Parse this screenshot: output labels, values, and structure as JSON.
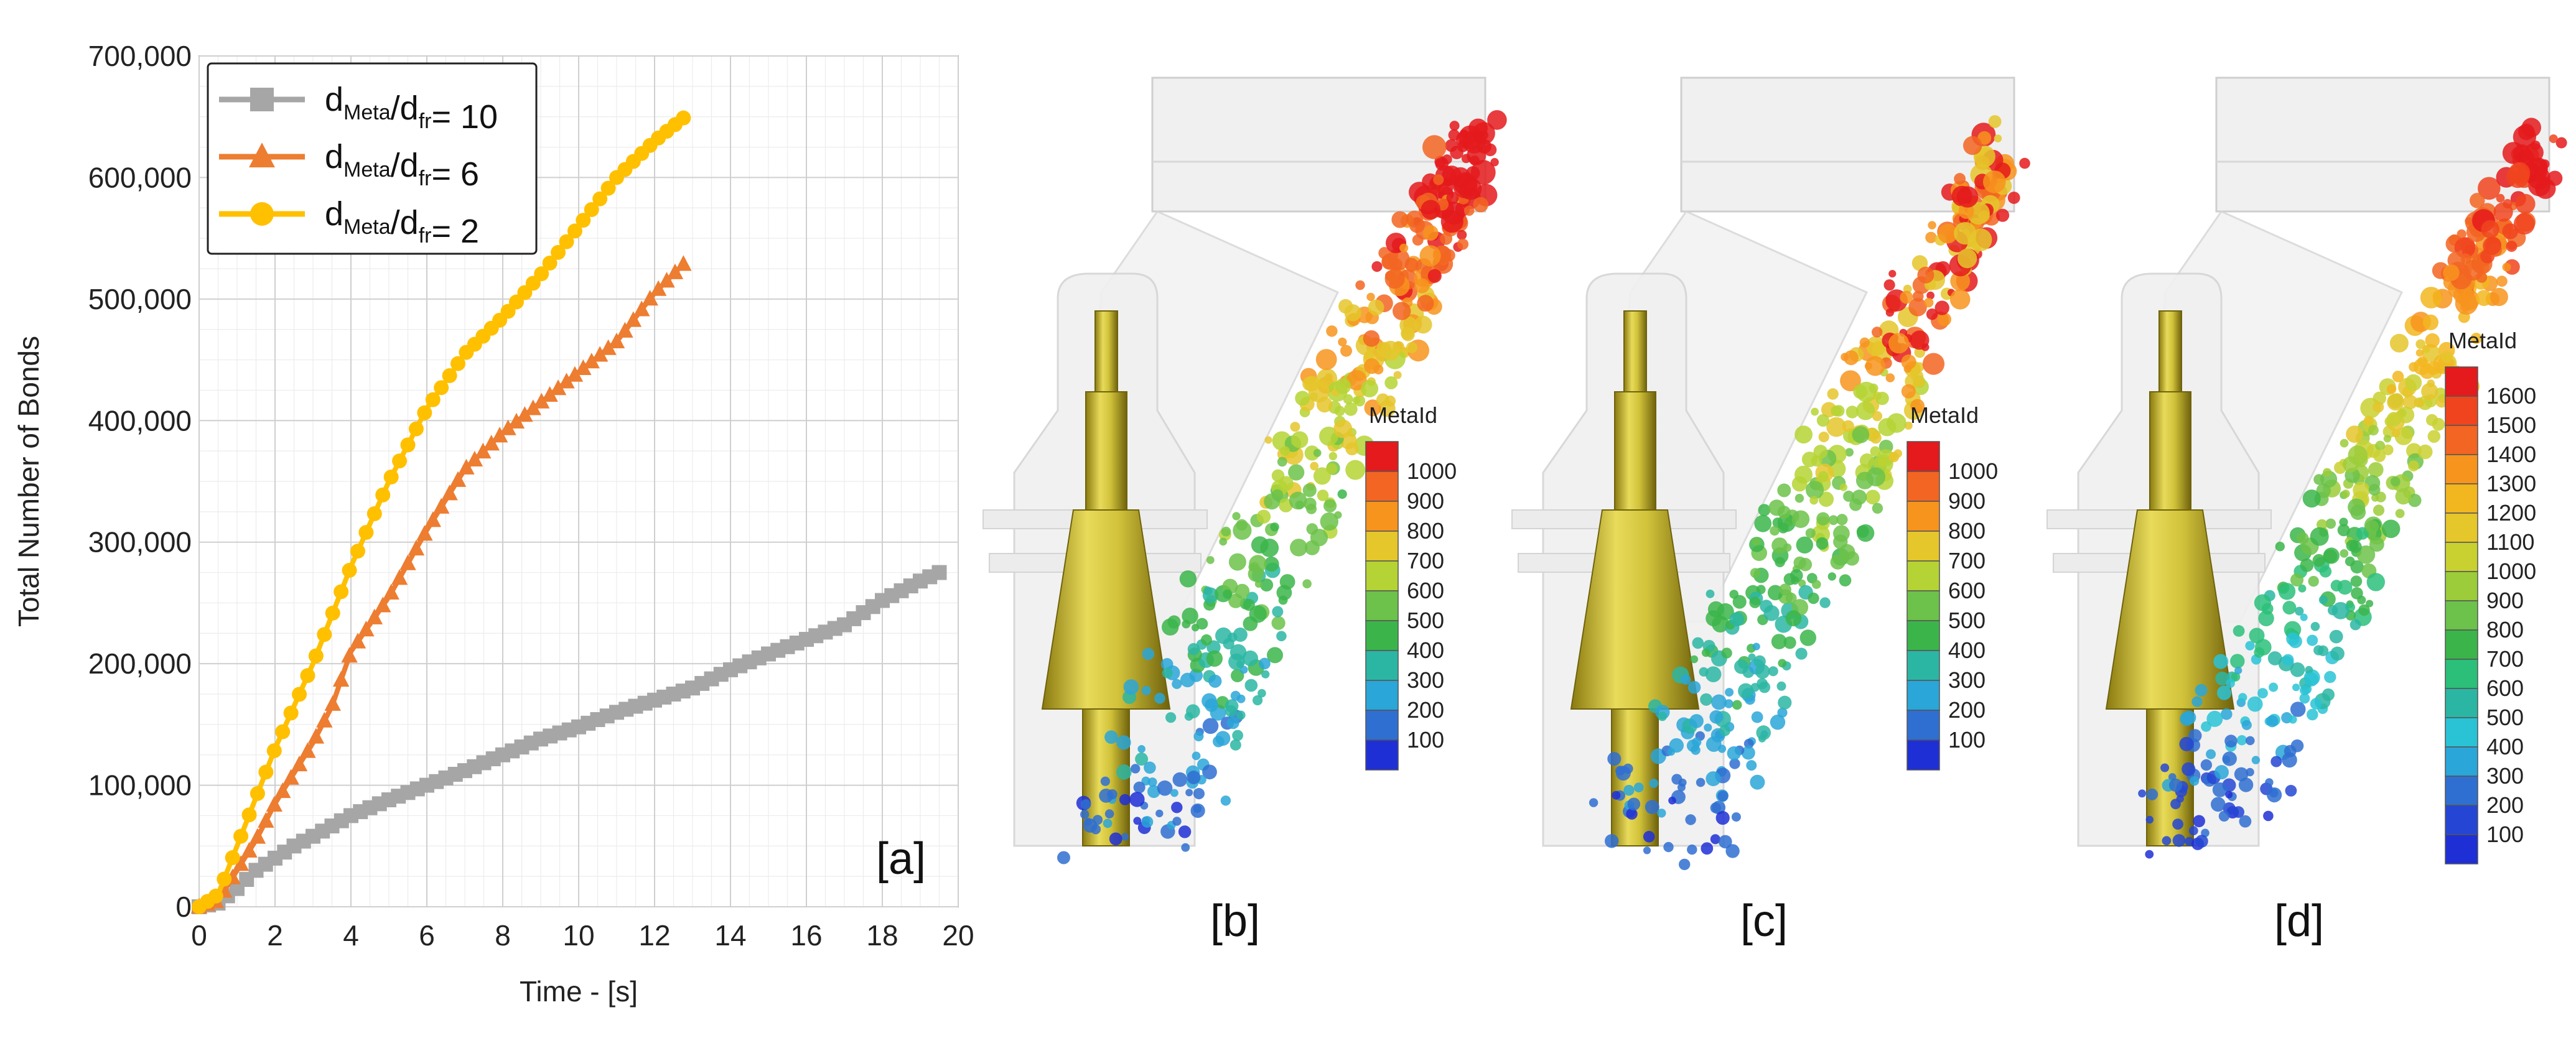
{
  "chart_data": {
    "type": "line",
    "title": "",
    "xlabel": "Time - [s]",
    "ylabel": "Total Number of Bonds",
    "xlim": [
      0,
      20
    ],
    "ylim": [
      0,
      700000
    ],
    "xticks": [
      "0",
      "2",
      "4",
      "6",
      "8",
      "10",
      "12",
      "14",
      "16",
      "18",
      "20"
    ],
    "yticks": [
      "0",
      "100,000",
      "200,000",
      "300,000",
      "400,000",
      "500,000",
      "600,000",
      "700,000"
    ],
    "grid": true,
    "legend_position": "top-left",
    "panel_label": "[a]",
    "series": [
      {
        "name": "dMeta/dfr= 10",
        "legend": {
          "main": "d",
          "sub1": "Meta",
          "mid": "/d",
          "sub2": "fr",
          "tail": "= 10"
        },
        "color": "#a6a6a6",
        "marker": "square",
        "x": [
          0,
          0.5,
          1,
          1.5,
          2,
          2.5,
          3,
          4,
          5,
          6,
          7,
          8,
          9,
          10,
          11,
          12,
          13,
          14,
          15,
          16,
          17,
          18,
          19,
          19.5
        ],
        "y": [
          0,
          3000,
          15000,
          30000,
          40000,
          50000,
          58000,
          75000,
          88000,
          100000,
          112000,
          125000,
          138000,
          148000,
          160000,
          170000,
          180000,
          195000,
          208000,
          220000,
          232000,
          252000,
          268000,
          275000
        ]
      },
      {
        "name": "dMeta/dfr= 6",
        "legend": {
          "main": "d",
          "sub1": "Meta",
          "mid": "/d",
          "sub2": "fr",
          "tail": "= 6"
        },
        "color": "#ed7d31",
        "marker": "triangle",
        "x": [
          0,
          0.5,
          1,
          1.5,
          2,
          2.5,
          3,
          3.5,
          4,
          5,
          6,
          7,
          8,
          9,
          10,
          11,
          12,
          12.8
        ],
        "y": [
          0,
          5000,
          30000,
          55000,
          85000,
          110000,
          135000,
          165000,
          210000,
          255000,
          310000,
          360000,
          390000,
          415000,
          440000,
          465000,
          505000,
          530000
        ]
      },
      {
        "name": "dMeta/dfr= 2",
        "legend": {
          "main": "d",
          "sub1": "Meta",
          "mid": "/d",
          "sub2": "fr",
          "tail": "= 2"
        },
        "color": "#ffc000",
        "marker": "circle",
        "x": [
          0,
          0.5,
          1,
          1.5,
          2,
          2.5,
          3,
          3.5,
          4,
          5,
          6,
          7,
          8,
          9,
          10,
          11,
          12,
          12.8
        ],
        "y": [
          0,
          10000,
          50000,
          90000,
          130000,
          165000,
          200000,
          240000,
          280000,
          350000,
          410000,
          455000,
          485000,
          520000,
          560000,
          600000,
          630000,
          650000
        ]
      }
    ]
  },
  "panels": [
    {
      "label": "[b]",
      "colorbar_title": "MetaId",
      "colorbar_ticks": [
        "1000",
        "900",
        "800",
        "700",
        "600",
        "500",
        "400",
        "300",
        "200",
        "100"
      ],
      "colors": [
        "#e41a1c",
        "#f26522",
        "#f7941d",
        "#e5c62b",
        "#b5d334",
        "#6cc24a",
        "#3bb54a",
        "#2bb6a3",
        "#2aa6d8",
        "#2f6fd1",
        "#1f2fd6"
      ]
    },
    {
      "label": "[c]",
      "colorbar_title": "MetaId",
      "colorbar_ticks": [
        "1000",
        "900",
        "800",
        "700",
        "600",
        "500",
        "400",
        "300",
        "200",
        "100"
      ],
      "colors": [
        "#e41a1c",
        "#f26522",
        "#f7941d",
        "#e5c62b",
        "#b5d334",
        "#6cc24a",
        "#3bb54a",
        "#2bb6a3",
        "#2aa6d8",
        "#2f6fd1",
        "#1f2fd6"
      ]
    },
    {
      "label": "[d]",
      "colorbar_title": "MetaId",
      "colorbar_ticks": [
        "1600",
        "1500",
        "1400",
        "1300",
        "1200",
        "1100",
        "1000",
        "900",
        "800",
        "700",
        "600",
        "500",
        "400",
        "300",
        "200",
        "100"
      ],
      "colors": [
        "#e41a1c",
        "#f0441e",
        "#f26522",
        "#f7941d",
        "#f2b61f",
        "#e5c62b",
        "#c9d131",
        "#9ccc3a",
        "#6cc24a",
        "#3bb54a",
        "#2bbf7a",
        "#2bb6a3",
        "#2ac3d6",
        "#2aa6d8",
        "#2f6fd1",
        "#2546d4",
        "#1f2fd6"
      ]
    }
  ]
}
